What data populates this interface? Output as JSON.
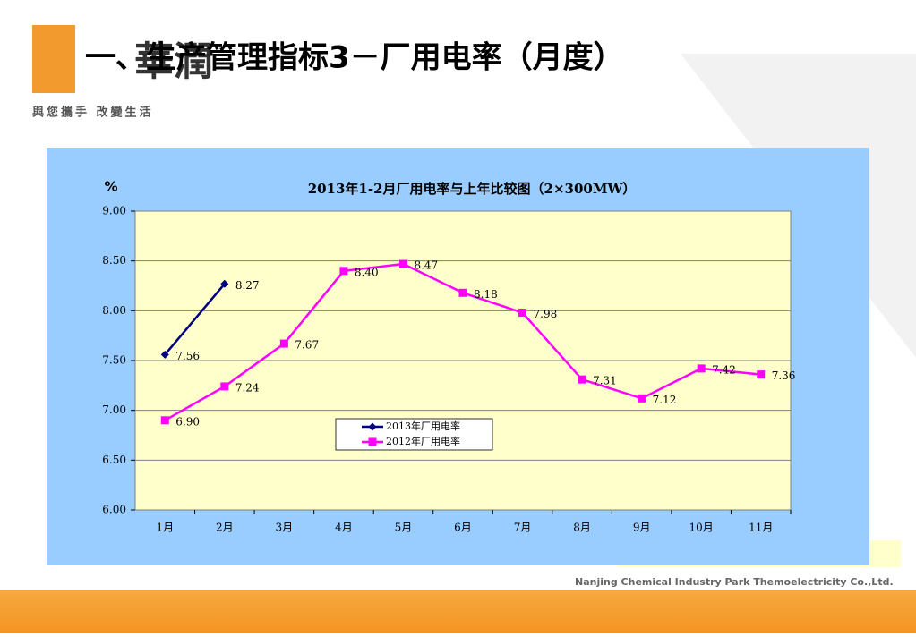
{
  "header": {
    "logo_text": "華潤",
    "slogan": "與您攜手 改變生活",
    "title": "一、生产管理指标3－厂用电率（月度）"
  },
  "footer": {
    "company": "Nanjing Chemical Industry Park Themoelectricity  Co.,Ltd."
  },
  "chart_data": {
    "type": "line",
    "title": "2013年1-2月厂用电率与上年比较图（2×300MW）",
    "y_label": "%",
    "categories": [
      "1月",
      "2月",
      "3月",
      "4月",
      "5月",
      "6月",
      "7月",
      "8月",
      "9月",
      "10月",
      "11月"
    ],
    "series": [
      {
        "name": "2013年厂用电率",
        "color": "#000080",
        "marker": "diamond",
        "values": [
          7.56,
          8.27,
          null,
          null,
          null,
          null,
          null,
          null,
          null,
          null,
          null
        ],
        "value_labels": [
          "7.56",
          "8.27",
          null,
          null,
          null,
          null,
          null,
          null,
          null,
          null,
          null
        ]
      },
      {
        "name": "2012年厂用电率",
        "color": "#ff00ff",
        "marker": "square",
        "values": [
          6.9,
          7.24,
          7.67,
          8.4,
          8.47,
          8.18,
          7.98,
          7.31,
          7.12,
          7.42,
          7.36
        ],
        "value_labels": [
          "6.90",
          "7.24",
          "7.67",
          "8.40",
          "8.47",
          "8.18",
          "7.98",
          "7.31",
          "7.12",
          "7.42",
          "7.36"
        ]
      }
    ],
    "ylim": [
      6,
      9
    ],
    "yticks": [
      {
        "value": 6,
        "label": "6.00"
      },
      {
        "value": 6.5,
        "label": "6.50"
      },
      {
        "value": 7,
        "label": "7.00"
      },
      {
        "value": 7.5,
        "label": "7.50"
      },
      {
        "value": 8,
        "label": "8.00"
      },
      {
        "value": 8.5,
        "label": "8.50"
      },
      {
        "value": 9,
        "label": "9.00"
      }
    ],
    "grid": true
  }
}
